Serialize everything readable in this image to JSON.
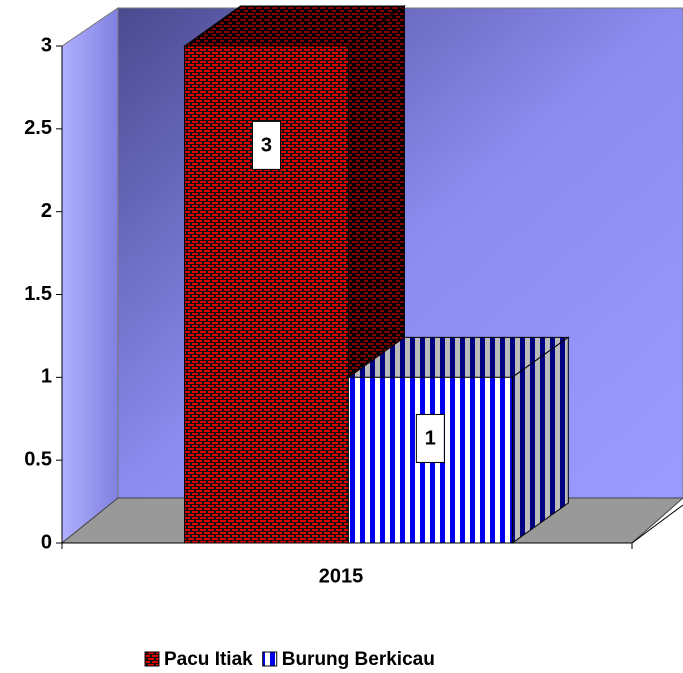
{
  "chart_data": {
    "type": "bar3d",
    "categories": [
      "2015"
    ],
    "series": [
      {
        "name": "Pacu Itiak",
        "color": "#cc0000",
        "values": [
          3
        ]
      },
      {
        "name": "Burung Berkicau",
        "color": "#0000ee",
        "values": [
          1
        ]
      }
    ],
    "ylim": [
      0,
      3
    ],
    "yticks": [
      0,
      0.5,
      1,
      1.5,
      2,
      2.5,
      3
    ],
    "legend": "bottom"
  }
}
